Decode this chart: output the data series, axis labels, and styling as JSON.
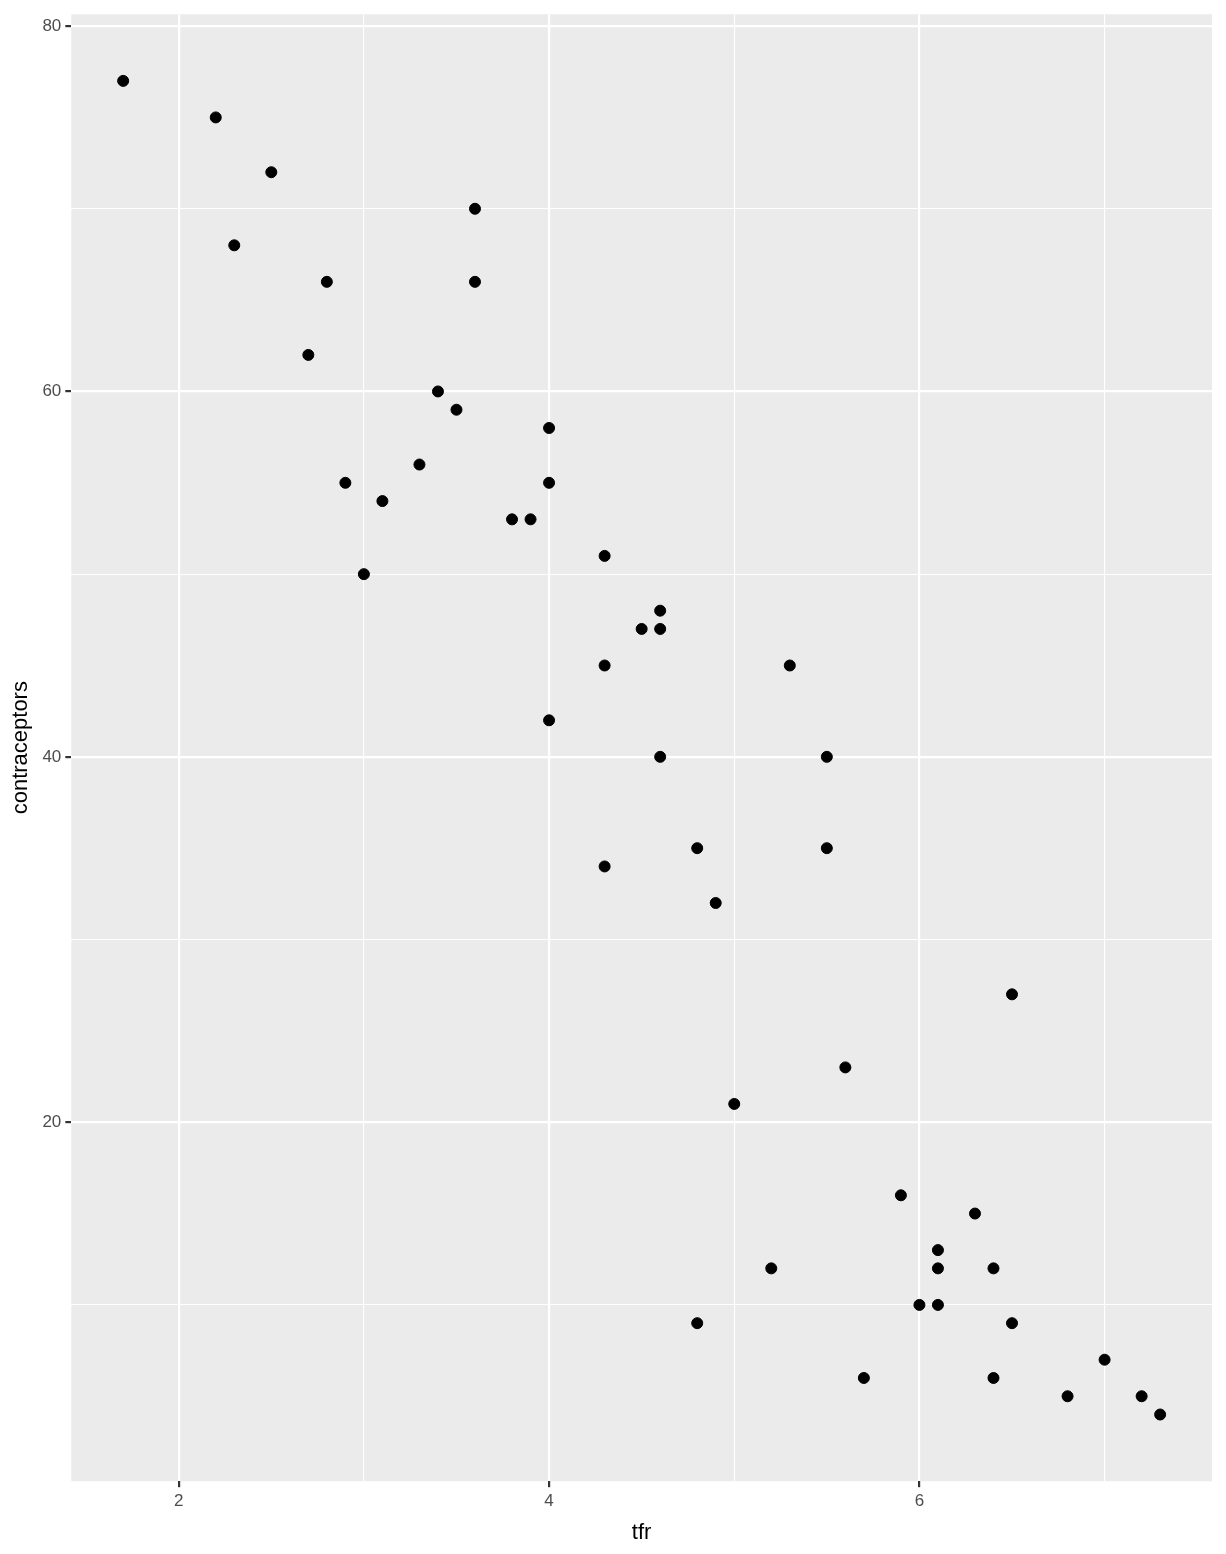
{
  "chart_data": {
    "type": "scatter",
    "xlabel": "tfr",
    "ylabel": "contraceptors",
    "x": [
      1.7,
      2.2,
      2.5,
      2.3,
      2.8,
      3.6,
      3.6,
      2.7,
      3.4,
      3.5,
      4.0,
      2.9,
      3.3,
      3.1,
      4.0,
      3.8,
      3.9,
      3.0,
      4.3,
      4.6,
      4.5,
      4.6,
      4.3,
      5.3,
      4.0,
      4.6,
      5.5,
      4.8,
      5.5,
      4.3,
      4.9,
      6.5,
      5.6,
      5.0,
      5.9,
      6.3,
      6.1,
      5.2,
      6.1,
      6.4,
      6.0,
      6.1,
      4.8,
      6.5,
      7.0,
      5.7,
      6.4,
      6.8,
      7.2,
      7.3
    ],
    "series": [
      {
        "color": "#000000",
        "values": [
          77,
          75,
          72,
          68,
          66,
          70,
          66,
          62,
          60,
          59,
          58,
          55,
          56,
          54,
          55,
          53,
          53,
          50,
          51,
          48,
          47,
          47,
          45,
          45,
          42,
          40,
          40,
          35,
          35,
          34,
          32,
          27,
          23,
          21,
          16,
          15,
          13,
          12,
          12,
          12,
          10,
          10,
          9,
          9,
          7,
          6,
          6,
          5,
          5,
          4
        ]
      }
    ],
    "xlim": [
      1.42,
      7.58
    ],
    "ylim": [
      0.35,
      80.65
    ],
    "xticks": [
      2,
      {
        "value": 3,
        "label": null
      },
      4,
      {
        "value": 5,
        "label": null
      },
      6,
      {
        "value": 7,
        "label": null
      }
    ],
    "yticks": [
      {
        "value": 10,
        "label": null
      },
      20,
      {
        "value": 30,
        "label": null
      },
      40,
      {
        "value": 50,
        "label": null
      },
      60,
      {
        "value": 70,
        "label": null
      },
      80
    ],
    "grid": true,
    "legend": false,
    "marker": "circle"
  }
}
